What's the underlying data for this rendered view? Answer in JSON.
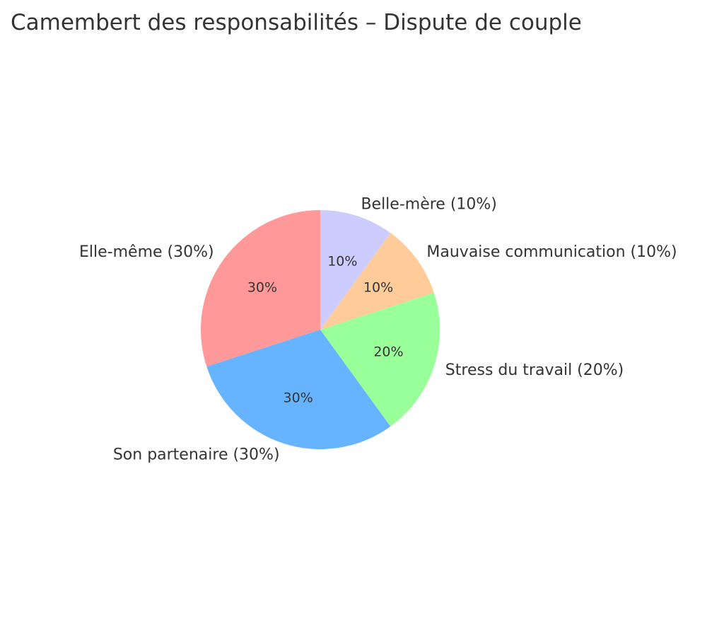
{
  "chart_data": {
    "type": "pie",
    "title": "Camembert des responsabilités – Dispute de couple",
    "start_angle_deg": 90,
    "direction": "counterclockwise",
    "slices": [
      {
        "label": "Elle-même (30%)",
        "value": 30,
        "pct_label": "30%",
        "color": "#ff9999"
      },
      {
        "label": "Son partenaire (30%)",
        "value": 30,
        "pct_label": "30%",
        "color": "#66b3ff"
      },
      {
        "label": "Stress du travail (20%)",
        "value": 20,
        "pct_label": "20%",
        "color": "#99ff99"
      },
      {
        "label": "Mauvaise communication (10%)",
        "value": 10,
        "pct_label": "10%",
        "color": "#ffcc99"
      },
      {
        "label": "Belle-mère (10%)",
        "value": 10,
        "pct_label": "10%",
        "color": "#ccccff"
      }
    ]
  }
}
